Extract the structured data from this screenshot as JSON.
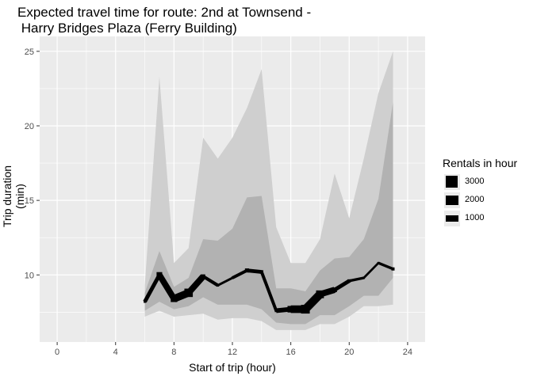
{
  "chart_data": {
    "type": "line",
    "title": "Expected travel time for route: 2nd at Townsend -\n Harry Bridges Plaza (Ferry Building)",
    "xlabel": "Start of trip (hour)",
    "ylabel": "Trip duration (min)",
    "xlim": [
      -1.2,
      25.2
    ],
    "ylim": [
      5.5,
      26
    ],
    "x_ticks": [
      0,
      4,
      8,
      12,
      16,
      20,
      24
    ],
    "y_ticks": [
      10,
      15,
      20,
      25
    ],
    "grid": true,
    "legend_position": "right",
    "legend": {
      "title": "Rentals in hour",
      "entries": [
        {
          "label": "3000",
          "size": 3000
        },
        {
          "label": "2000",
          "size": 2000
        },
        {
          "label": "1000",
          "size": 1000
        }
      ]
    },
    "x": [
      6,
      7,
      8,
      9,
      10,
      11,
      12,
      13,
      14,
      15,
      16,
      17,
      18,
      19,
      20,
      21,
      22,
      23
    ],
    "series": [
      {
        "role": "outer-band",
        "upper": [
          9.3,
          23.3,
          10.8,
          11.8,
          19.2,
          17.8,
          19.2,
          21.2,
          23.8,
          13.2,
          10.8,
          10.8,
          12.4,
          16.8,
          13.8,
          17.8,
          22.2,
          25.0
        ],
        "lower": [
          7.2,
          7.6,
          7.2,
          7.3,
          7.4,
          7.0,
          7.1,
          7.1,
          6.9,
          6.3,
          6.3,
          6.3,
          6.7,
          6.7,
          7.2,
          7.9,
          7.9,
          8.0
        ]
      },
      {
        "role": "inner-band",
        "upper": [
          8.8,
          11.6,
          9.2,
          9.8,
          12.4,
          12.3,
          13.1,
          15.2,
          15.3,
          9.1,
          9.1,
          8.9,
          10.3,
          11.1,
          11.2,
          12.4,
          15.1,
          21.6
        ],
        "lower": [
          7.6,
          8.2,
          7.7,
          7.9,
          8.5,
          8.0,
          8.0,
          8.0,
          7.7,
          6.8,
          6.7,
          6.7,
          7.3,
          7.3,
          7.9,
          8.6,
          8.6,
          9.8
        ]
      },
      {
        "role": "median",
        "y": [
          8.2,
          10.0,
          8.4,
          8.8,
          9.9,
          9.3,
          9.8,
          10.3,
          10.2,
          7.6,
          7.7,
          7.7,
          8.7,
          9.0,
          9.6,
          9.8,
          10.8,
          10.4
        ],
        "rentals": [
          1200,
          2300,
          2600,
          3200,
          1800,
          1300,
          1200,
          1800,
          1600,
          1400,
          2600,
          3300,
          3000,
          2000,
          1500,
          1200,
          1200,
          1500
        ]
      }
    ],
    "colors": {
      "panel_bg": "#ebebeb",
      "grid": "#ffffff",
      "outer_band": "#cfcfcf",
      "inner_band": "#b2b2b2",
      "line": "#000000",
      "axis_text": "#4d4d4d",
      "tick": "#333333"
    }
  }
}
